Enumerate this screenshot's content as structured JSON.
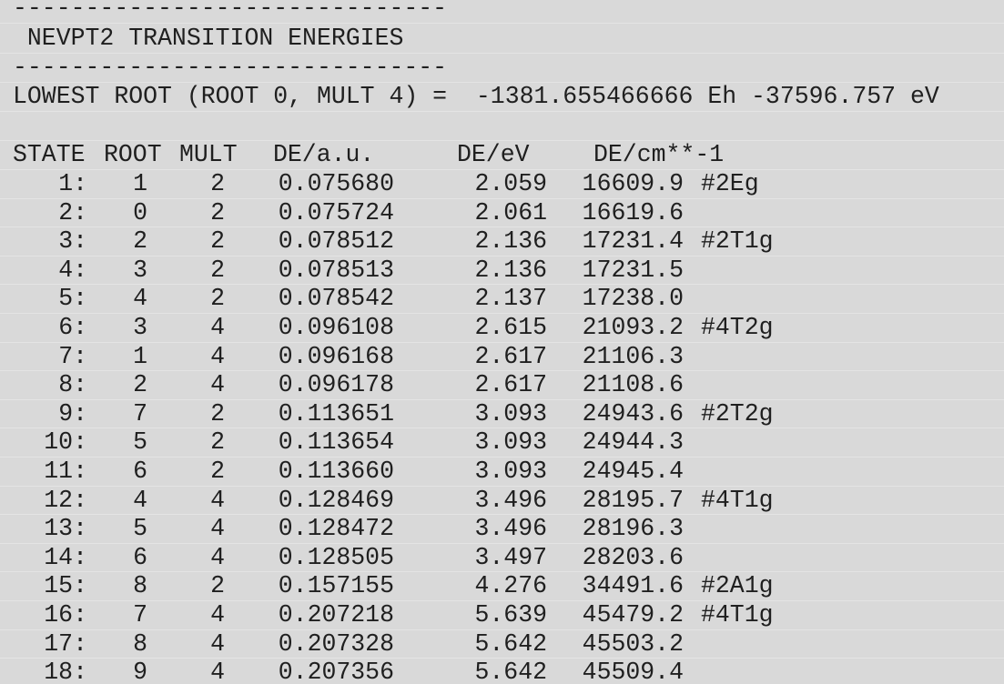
{
  "header": {
    "rule_top": "------------------------------",
    "title": " NEVPT2 TRANSITION ENERGIES",
    "rule_bottom": "------------------------------",
    "lowest_root": "LOWEST ROOT (ROOT 0, MULT 4) =  -1381.655466666 Eh -37596.757 eV"
  },
  "columns": {
    "state": "STATE",
    "root": "ROOT",
    "mult": "MULT",
    "de_au": "DE/a.u.",
    "de_ev": "DE/eV",
    "de_cm": "DE/cm**-1"
  },
  "rows": [
    {
      "state": "1:",
      "root": "1",
      "mult": "2",
      "de_au": "0.075680",
      "de_ev": "2.059",
      "de_cm": "16609.9",
      "label": "#2Eg"
    },
    {
      "state": "2:",
      "root": "0",
      "mult": "2",
      "de_au": "0.075724",
      "de_ev": "2.061",
      "de_cm": "16619.6",
      "label": ""
    },
    {
      "state": "3:",
      "root": "2",
      "mult": "2",
      "de_au": "0.078512",
      "de_ev": "2.136",
      "de_cm": "17231.4",
      "label": "#2T1g"
    },
    {
      "state": "4:",
      "root": "3",
      "mult": "2",
      "de_au": "0.078513",
      "de_ev": "2.136",
      "de_cm": "17231.5",
      "label": ""
    },
    {
      "state": "5:",
      "root": "4",
      "mult": "2",
      "de_au": "0.078542",
      "de_ev": "2.137",
      "de_cm": "17238.0",
      "label": ""
    },
    {
      "state": "6:",
      "root": "3",
      "mult": "4",
      "de_au": "0.096108",
      "de_ev": "2.615",
      "de_cm": "21093.2",
      "label": "#4T2g"
    },
    {
      "state": "7:",
      "root": "1",
      "mult": "4",
      "de_au": "0.096168",
      "de_ev": "2.617",
      "de_cm": "21106.3",
      "label": ""
    },
    {
      "state": "8:",
      "root": "2",
      "mult": "4",
      "de_au": "0.096178",
      "de_ev": "2.617",
      "de_cm": "21108.6",
      "label": ""
    },
    {
      "state": "9:",
      "root": "7",
      "mult": "2",
      "de_au": "0.113651",
      "de_ev": "3.093",
      "de_cm": "24943.6",
      "label": "#2T2g"
    },
    {
      "state": "10:",
      "root": "5",
      "mult": "2",
      "de_au": "0.113654",
      "de_ev": "3.093",
      "de_cm": "24944.3",
      "label": ""
    },
    {
      "state": "11:",
      "root": "6",
      "mult": "2",
      "de_au": "0.113660",
      "de_ev": "3.093",
      "de_cm": "24945.4",
      "label": ""
    },
    {
      "state": "12:",
      "root": "4",
      "mult": "4",
      "de_au": "0.128469",
      "de_ev": "3.496",
      "de_cm": "28195.7",
      "label": "#4T1g"
    },
    {
      "state": "13:",
      "root": "5",
      "mult": "4",
      "de_au": "0.128472",
      "de_ev": "3.496",
      "de_cm": "28196.3",
      "label": ""
    },
    {
      "state": "14:",
      "root": "6",
      "mult": "4",
      "de_au": "0.128505",
      "de_ev": "3.497",
      "de_cm": "28203.6",
      "label": ""
    },
    {
      "state": "15:",
      "root": "8",
      "mult": "2",
      "de_au": "0.157155",
      "de_ev": "4.276",
      "de_cm": "34491.6",
      "label": "#2A1g"
    },
    {
      "state": "16:",
      "root": "7",
      "mult": "4",
      "de_au": "0.207218",
      "de_ev": "5.639",
      "de_cm": "45479.2",
      "label": "#4T1g"
    },
    {
      "state": "17:",
      "root": "8",
      "mult": "4",
      "de_au": "0.207328",
      "de_ev": "5.642",
      "de_cm": "45503.2",
      "label": ""
    },
    {
      "state": "18:",
      "root": "9",
      "mult": "4",
      "de_au": "0.207356",
      "de_ev": "5.642",
      "de_cm": "45509.4",
      "label": ""
    }
  ]
}
